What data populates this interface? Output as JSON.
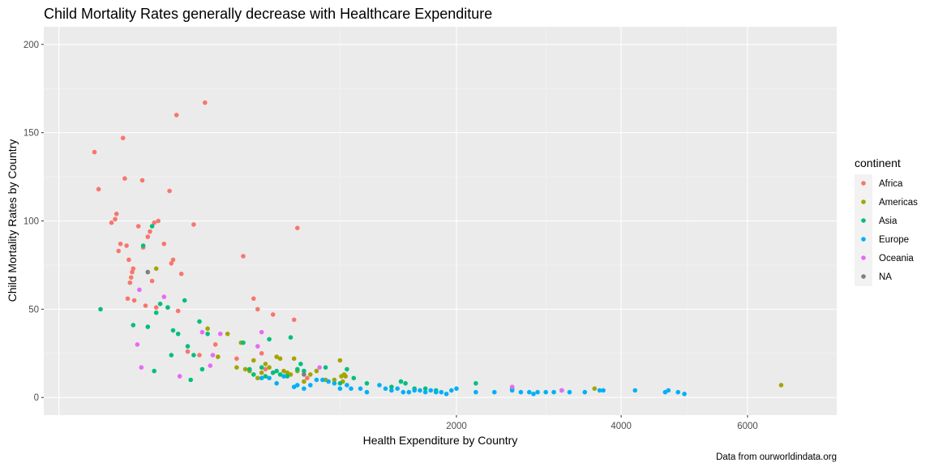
{
  "chart_data": {
    "type": "scatter",
    "title": "Child Mortality Rates generally decrease with Healthcare Expenditure",
    "xlabel": "Health Expenditure by Country",
    "ylabel": "Child Mortality Rates by Country",
    "caption": "Data from ourworldindata.org",
    "x_scale": "sqrt",
    "xlim": [
      0,
      7000
    ],
    "ylim": [
      -10,
      210
    ],
    "x_ticks": [
      2000,
      4000,
      6000
    ],
    "y_ticks": [
      0,
      50,
      100,
      150,
      200
    ],
    "grid": true,
    "legend": {
      "title": "continent",
      "position": "right",
      "entries": [
        {
          "name": "Africa",
          "color": "#F8766D"
        },
        {
          "name": "Americas",
          "color": "#A3A500"
        },
        {
          "name": "Asia",
          "color": "#00BF7D"
        },
        {
          "name": "Europe",
          "color": "#00B0F6"
        },
        {
          "name": "Oceania",
          "color": "#E76BF3"
        },
        {
          "name": "NA",
          "color": "#7F7F7F"
        }
      ]
    },
    "series": [
      {
        "name": "Africa",
        "color": "#F8766D",
        "points": [
          [
            16,
            139
          ],
          [
            20,
            118
          ],
          [
            35,
            99
          ],
          [
            40,
            101
          ],
          [
            42,
            104
          ],
          [
            45,
            83
          ],
          [
            48,
            87
          ],
          [
            52,
            147
          ],
          [
            55,
            124
          ],
          [
            58,
            86
          ],
          [
            60,
            56
          ],
          [
            62,
            78
          ],
          [
            64,
            65
          ],
          [
            66,
            68
          ],
          [
            68,
            71
          ],
          [
            70,
            73
          ],
          [
            72,
            55
          ],
          [
            80,
            97
          ],
          [
            88,
            123
          ],
          [
            90,
            85
          ],
          [
            95,
            52
          ],
          [
            100,
            91
          ],
          [
            105,
            94
          ],
          [
            110,
            66
          ],
          [
            115,
            99
          ],
          [
            120,
            51
          ],
          [
            125,
            100
          ],
          [
            140,
            87
          ],
          [
            150,
            51
          ],
          [
            155,
            117
          ],
          [
            160,
            76
          ],
          [
            165,
            78
          ],
          [
            175,
            160
          ],
          [
            180,
            49
          ],
          [
            190,
            70
          ],
          [
            210,
            26
          ],
          [
            230,
            98
          ],
          [
            250,
            24
          ],
          [
            270,
            167
          ],
          [
            310,
            30
          ],
          [
            400,
            22
          ],
          [
            430,
            80
          ],
          [
            480,
            56
          ],
          [
            500,
            50
          ],
          [
            520,
            25
          ],
          [
            540,
            16
          ],
          [
            580,
            47
          ],
          [
            700,
            44
          ],
          [
            720,
            96
          ],
          [
            780,
            11
          ]
        ]
      },
      {
        "name": "Americas",
        "color": "#A3A500",
        "points": [
          [
            120,
            73
          ],
          [
            280,
            39
          ],
          [
            320,
            23
          ],
          [
            360,
            36
          ],
          [
            400,
            17
          ],
          [
            420,
            31
          ],
          [
            440,
            16
          ],
          [
            460,
            15
          ],
          [
            480,
            21
          ],
          [
            500,
            11
          ],
          [
            520,
            14
          ],
          [
            540,
            19
          ],
          [
            560,
            17
          ],
          [
            580,
            14
          ],
          [
            600,
            23
          ],
          [
            620,
            22
          ],
          [
            640,
            15
          ],
          [
            660,
            14
          ],
          [
            680,
            13
          ],
          [
            700,
            22
          ],
          [
            720,
            15
          ],
          [
            760,
            9
          ],
          [
            800,
            13
          ],
          [
            840,
            15
          ],
          [
            900,
            10
          ],
          [
            960,
            10
          ],
          [
            1000,
            21
          ],
          [
            1010,
            12
          ],
          [
            1020,
            9
          ],
          [
            1030,
            13
          ],
          [
            1040,
            12
          ],
          [
            3630,
            5
          ],
          [
            6600,
            7
          ]
        ]
      },
      {
        "name": "Asia",
        "color": "#00BF7D",
        "points": [
          [
            22,
            50
          ],
          [
            70,
            41
          ],
          [
            90,
            86
          ],
          [
            100,
            40
          ],
          [
            110,
            97
          ],
          [
            115,
            15
          ],
          [
            120,
            48
          ],
          [
            130,
            53
          ],
          [
            150,
            51
          ],
          [
            160,
            24
          ],
          [
            165,
            38
          ],
          [
            180,
            36
          ],
          [
            200,
            55
          ],
          [
            210,
            29
          ],
          [
            220,
            10
          ],
          [
            230,
            24
          ],
          [
            250,
            43
          ],
          [
            260,
            16
          ],
          [
            280,
            36
          ],
          [
            430,
            31
          ],
          [
            460,
            16
          ],
          [
            480,
            13
          ],
          [
            520,
            17
          ],
          [
            540,
            12
          ],
          [
            560,
            33
          ],
          [
            580,
            14
          ],
          [
            600,
            15
          ],
          [
            620,
            13
          ],
          [
            660,
            12
          ],
          [
            680,
            34
          ],
          [
            720,
            16
          ],
          [
            740,
            19
          ],
          [
            760,
            15
          ],
          [
            900,
            17
          ],
          [
            1000,
            8
          ],
          [
            1050,
            16
          ],
          [
            1100,
            11
          ],
          [
            1200,
            8
          ],
          [
            1400,
            6
          ],
          [
            1480,
            9
          ],
          [
            1520,
            8
          ],
          [
            1600,
            5
          ],
          [
            1700,
            5
          ],
          [
            1800,
            4
          ],
          [
            2200,
            8
          ],
          [
            2600,
            5
          ]
        ]
      },
      {
        "name": "Europe",
        "color": "#00B0F6",
        "points": [
          [
            520,
            11
          ],
          [
            560,
            11
          ],
          [
            600,
            8
          ],
          [
            640,
            12
          ],
          [
            700,
            6
          ],
          [
            720,
            7
          ],
          [
            760,
            5
          ],
          [
            800,
            7
          ],
          [
            840,
            10
          ],
          [
            880,
            10
          ],
          [
            920,
            9
          ],
          [
            960,
            8
          ],
          [
            1000,
            5
          ],
          [
            1050,
            7
          ],
          [
            1080,
            5
          ],
          [
            1150,
            5
          ],
          [
            1200,
            3
          ],
          [
            1300,
            7
          ],
          [
            1350,
            5
          ],
          [
            1400,
            4
          ],
          [
            1450,
            5
          ],
          [
            1500,
            3
          ],
          [
            1550,
            3
          ],
          [
            1600,
            4
          ],
          [
            1650,
            4
          ],
          [
            1700,
            3
          ],
          [
            1750,
            4
          ],
          [
            1800,
            3
          ],
          [
            1850,
            3
          ],
          [
            1900,
            2
          ],
          [
            1950,
            4
          ],
          [
            2000,
            5
          ],
          [
            2200,
            3
          ],
          [
            2400,
            3
          ],
          [
            2600,
            4
          ],
          [
            2700,
            3
          ],
          [
            2800,
            3
          ],
          [
            2850,
            2
          ],
          [
            2900,
            3
          ],
          [
            3000,
            3
          ],
          [
            3100,
            3
          ],
          [
            3200,
            4
          ],
          [
            3300,
            3
          ],
          [
            3500,
            3
          ],
          [
            3700,
            4
          ],
          [
            3750,
            4
          ],
          [
            4200,
            4
          ],
          [
            4650,
            3
          ],
          [
            4700,
            4
          ],
          [
            4850,
            3
          ],
          [
            4950,
            2
          ]
        ]
      },
      {
        "name": "Oceania",
        "color": "#E76BF3",
        "points": [
          [
            78,
            30
          ],
          [
            82,
            61
          ],
          [
            86,
            17
          ],
          [
            140,
            57
          ],
          [
            185,
            12
          ],
          [
            260,
            37
          ],
          [
            290,
            18
          ],
          [
            300,
            24
          ],
          [
            330,
            36
          ],
          [
            500,
            29
          ],
          [
            520,
            37
          ],
          [
            860,
            17
          ],
          [
            2600,
            6
          ],
          [
            3200,
            4
          ]
        ]
      },
      {
        "name": "NA",
        "color": "#7F7F7F",
        "points": [
          [
            100,
            71
          ],
          [
            760,
            13
          ]
        ]
      }
    ]
  }
}
